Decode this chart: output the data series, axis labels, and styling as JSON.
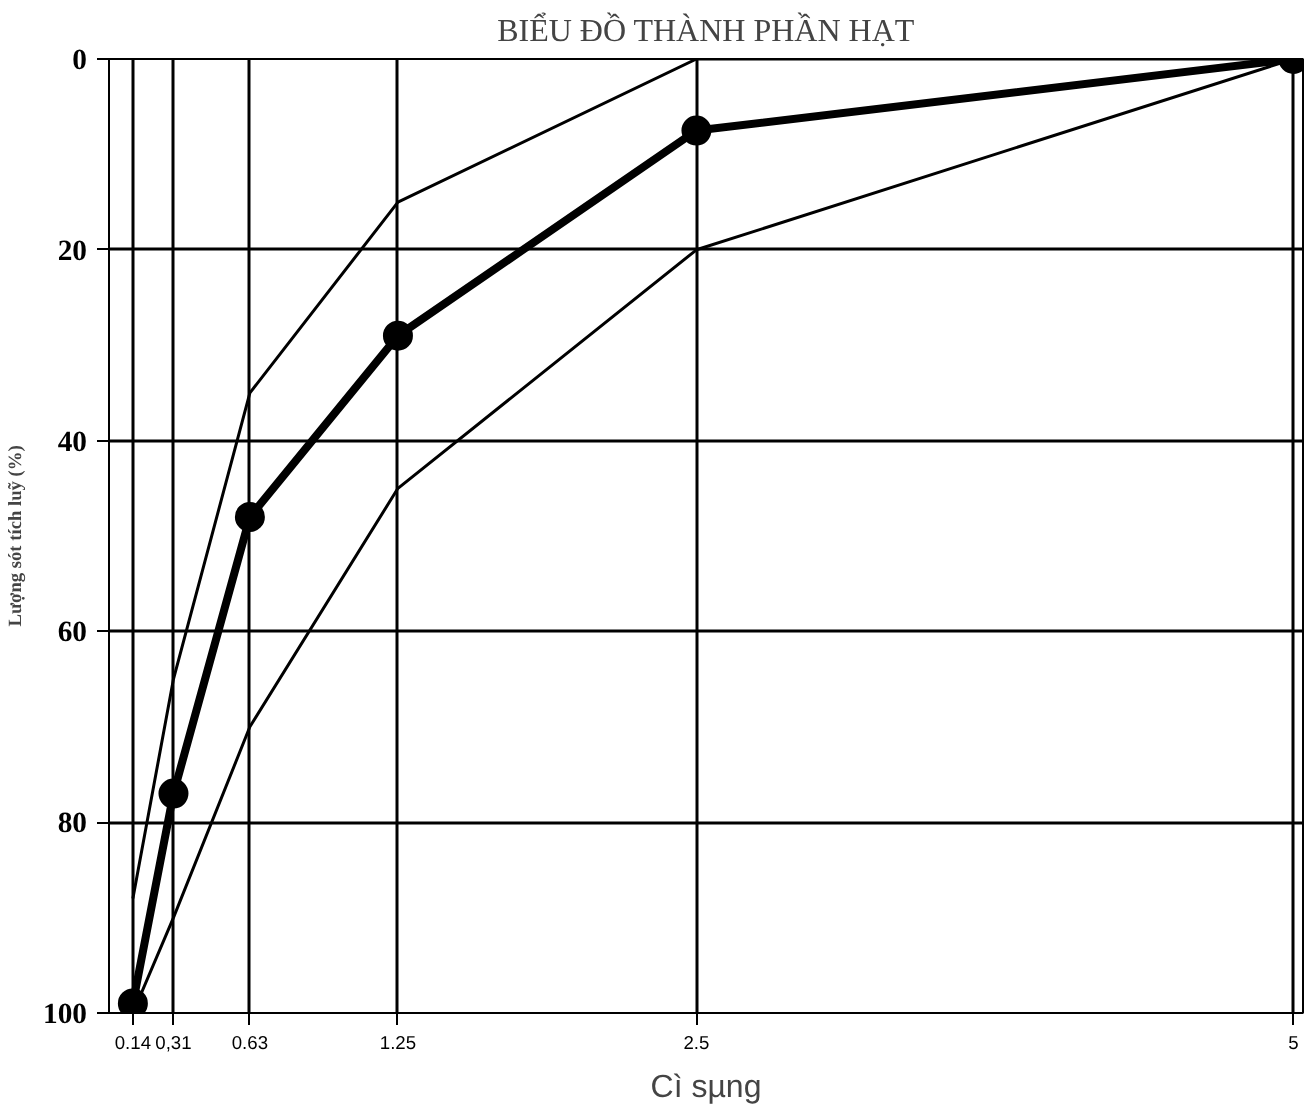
{
  "chart_data": {
    "type": "line",
    "title": "BIỂU ĐỒ THÀNH PHẦN HẠT",
    "xlabel": "Cì sµng",
    "ylabel": "Lượng sót tích luỹ (%)",
    "x": [
      0.14,
      0.31,
      0.63,
      1.25,
      2.5,
      5
    ],
    "series": [
      {
        "color": "#000000",
        "marker": "circle",
        "values": [
          99,
          77,
          48,
          29,
          7.5,
          0
        ]
      },
      {
        "color": "#000000",
        "marker": "none",
        "values": [
          88,
          65,
          35,
          15,
          0,
          0
        ]
      },
      {
        "color": "#000000",
        "marker": "none",
        "values": [
          100,
          90,
          70,
          45,
          20,
          0
        ]
      }
    ],
    "xlim": [
      0.04,
      5.04
    ],
    "ylim": [
      100,
      0
    ],
    "xticks": [
      0.14,
      {
        "value": 0.31,
        "label": "0,31"
      },
      0.63,
      1.25,
      2.5,
      5
    ],
    "yticks": [
      0,
      20,
      40,
      60,
      80,
      100
    ],
    "grid": true
  }
}
